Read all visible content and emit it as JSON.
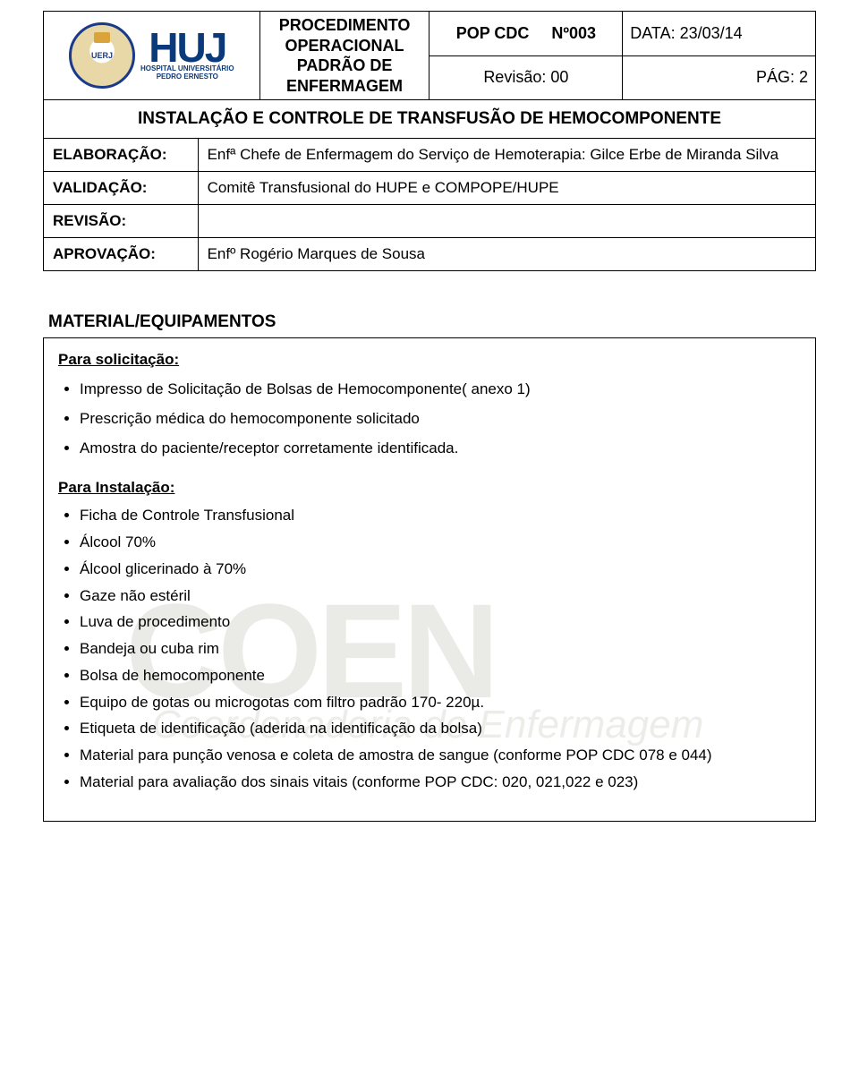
{
  "header": {
    "logo_uerj_text": "UERJ",
    "hupe_mark": "HUJ",
    "hupe_sub1": "HOSPITAL UNIVERSITÁRIO",
    "hupe_sub2": "PEDRO ERNESTO",
    "proc_title": "PROCEDIMENTO OPERACIONAL PADRÃO DE ENFERMAGEM",
    "pop_label": "POP CDC",
    "pop_num": "Nº003",
    "data_label": "DATA:",
    "data_value": "23/03/14",
    "rev_label": "Revisão:",
    "rev_value": "00",
    "pag_label": "PÁG:",
    "pag_value": "2"
  },
  "title": "INSTALAÇÃO E CONTROLE DE TRANSFUSÃO DE HEMOCOMPONENTE",
  "meta": {
    "elab_label": "ELABORAÇÃO:",
    "elab_value": "Enfª Chefe de Enfermagem do Serviço de Hemoterapia: Gilce Erbe de Miranda Silva",
    "valid_label": "VALIDAÇÃO:",
    "valid_value": "Comitê Transfusional do HUPE e COMPOPE/HUPE",
    "rev_label": "REVISÃO:",
    "rev_value": "",
    "aprov_label": "APROVAÇÃO:",
    "aprov_value": "Enfº Rogério Marques de Sousa"
  },
  "section1_heading": "MATERIAL/EQUIPAMENTOS",
  "box": {
    "sub1": "Para solicitação:",
    "list1": [
      "Impresso de Solicitação de Bolsas de Hemocomponente( anexo 1)",
      "Prescrição médica do hemocomponente solicitado",
      "Amostra do paciente/receptor corretamente identificada."
    ],
    "sub2": "Para Instalação:",
    "list2": [
      "Ficha de Controle Transfusional",
      "Álcool 70%",
      "Álcool glicerinado à 70%",
      "Gaze não estéril",
      "Luva de procedimento",
      "Bandeja ou cuba rim",
      "Bolsa de hemocomponente",
      "Equipo de gotas ou microgotas com filtro padrão 170- 220µ.",
      "Etiqueta de identificação (aderida na identificação da bolsa)",
      "Material para punção venosa e coleta de amostra de sangue (conforme POP CDC 078 e 044)",
      "Material para avaliação dos sinais vitais (conforme POP CDC: 020, 021,022 e 023)"
    ]
  },
  "watermark": {
    "main": "COEN",
    "sub": "Coordenadoria de Enfermagem"
  },
  "colors": {
    "border": "#000000",
    "text": "#000000",
    "logo_blue": "#0b3a7a",
    "watermark": "#5a5a3a"
  }
}
